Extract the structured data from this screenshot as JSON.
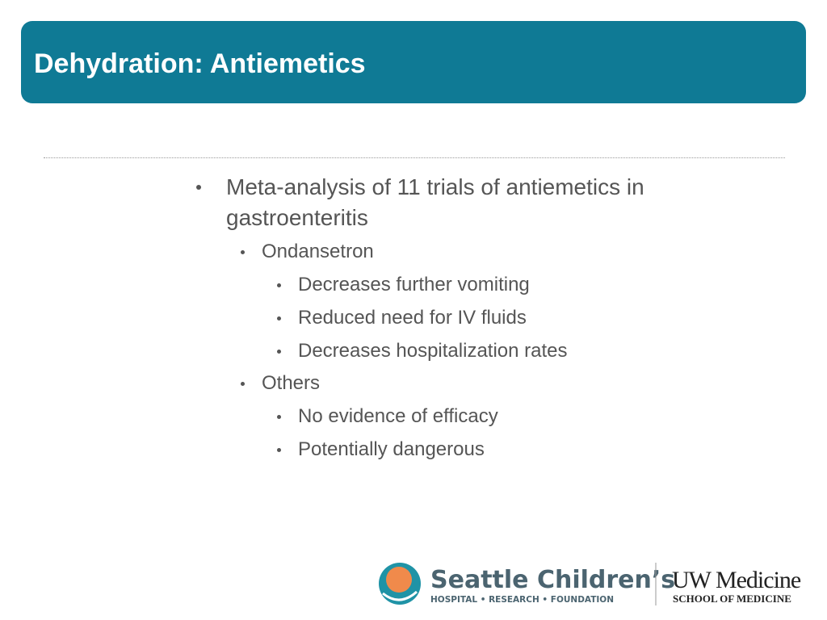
{
  "header": {
    "title": "Dehydration: Antiemetics"
  },
  "bullets": [
    {
      "text": "Meta-analysis of 11 trials of antiemetics in gastroenteritis",
      "children": [
        {
          "text": "Ondansetron",
          "children": [
            {
              "text": "Decreases further vomiting"
            },
            {
              "text": "Reduced need for IV fluids"
            },
            {
              "text": "Decreases hospitalization rates"
            }
          ]
        },
        {
          "text": "Others",
          "children": [
            {
              "text": "No evidence of efficacy"
            },
            {
              "text": "Potentially dangerous"
            }
          ]
        }
      ]
    }
  ],
  "logos": {
    "seattle_childrens": {
      "name": "Seattle Children’s",
      "tagline": "HOSPITAL • RESEARCH • FOUNDATION"
    },
    "uw_medicine": {
      "name": "UW Medicine",
      "school": "SCHOOL OF MEDICINE"
    }
  }
}
